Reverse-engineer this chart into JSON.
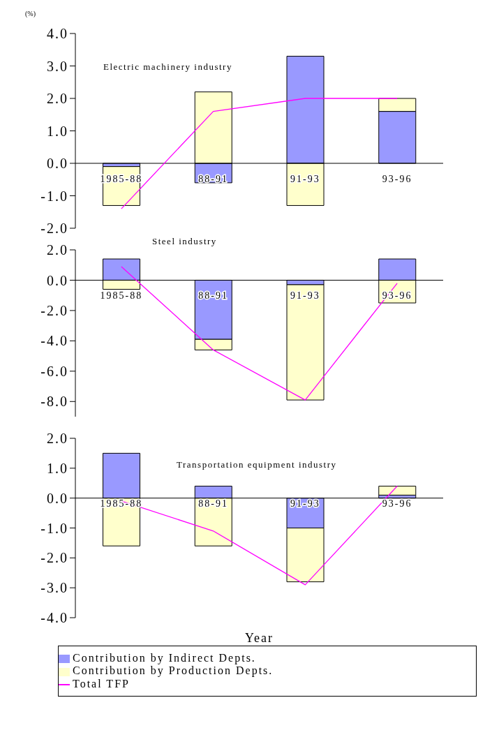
{
  "chart_data": [
    {
      "type": "bar",
      "stacked": true,
      "title": "Electric machinery industry",
      "ylabel": "(%)",
      "categories": [
        "1985-88",
        "88-91",
        "91-93",
        "93-96"
      ],
      "ylim": [
        -2,
        4
      ],
      "yticks": [
        {
          "value": -2,
          "label": "-2.0"
        },
        {
          "value": -1,
          "label": "-1.0"
        },
        {
          "value": 0,
          "label": "0.0"
        },
        {
          "value": 1,
          "label": "1.0"
        },
        {
          "value": 2,
          "label": "2.0"
        },
        {
          "value": 3,
          "label": "3.0"
        },
        {
          "value": 4,
          "label": "4.0"
        }
      ],
      "grid": false,
      "legend": false,
      "series": [
        {
          "color": "#9999ff",
          "values": [
            -0.1,
            -0.6,
            3.3,
            1.6
          ]
        },
        {
          "color": "#ffffcc",
          "values": [
            -1.2,
            2.2,
            -1.3,
            0.4
          ]
        },
        {
          "type": "line",
          "color": "#ff00ff",
          "values": [
            -1.4,
            1.6,
            2.0,
            2.0
          ]
        }
      ]
    },
    {
      "type": "bar",
      "stacked": true,
      "title": "Steel industry",
      "categories": [
        "1985-88",
        "88-91",
        "91-93",
        "93-96"
      ],
      "ylim": [
        -9,
        2
      ],
      "yticks": [
        {
          "value": -8,
          "label": "-8.0"
        },
        {
          "value": -6,
          "label": "-6.0"
        },
        {
          "value": -4,
          "label": "-4.0"
        },
        {
          "value": -2,
          "label": "-2.0"
        },
        {
          "value": 0,
          "label": "0.0"
        },
        {
          "value": 2,
          "label": "2.0"
        }
      ],
      "grid": false,
      "legend": false,
      "series": [
        {
          "color": "#9999ff",
          "values": [
            1.4,
            -3.9,
            -0.3,
            1.4
          ]
        },
        {
          "color": "#ffffcc",
          "values": [
            -0.6,
            -0.7,
            -7.6,
            -1.5
          ]
        },
        {
          "type": "line",
          "color": "#ff00ff",
          "values": [
            0.9,
            -4.6,
            -7.9,
            -0.2
          ]
        }
      ]
    },
    {
      "type": "bar",
      "stacked": true,
      "title": "Transportation equipment industry",
      "xlabel": "Year",
      "categories": [
        "1985-88",
        "88-91",
        "91-93",
        "93-96"
      ],
      "ylim": [
        -4,
        2
      ],
      "yticks": [
        {
          "value": -4,
          "label": "-4.0"
        },
        {
          "value": -3,
          "label": "-3.0"
        },
        {
          "value": -2,
          "label": "-2.0"
        },
        {
          "value": -1,
          "label": "-1.0"
        },
        {
          "value": 0,
          "label": "0.0"
        },
        {
          "value": 1,
          "label": "1.0"
        },
        {
          "value": 2,
          "label": "2.0"
        }
      ],
      "grid": false,
      "legend": "bottom",
      "series": [
        {
          "name": "Contribution by Indirect Depts.",
          "color": "#9999ff",
          "values": [
            1.5,
            0.4,
            -1.0,
            0.1
          ]
        },
        {
          "name": "Contribution by Production Depts.",
          "color": "#ffffcc",
          "values": [
            -1.6,
            -1.6,
            -1.8,
            0.3
          ]
        },
        {
          "type": "line",
          "name": "Total TFP",
          "color": "#ff00ff",
          "values": [
            -0.1,
            -1.1,
            -2.9,
            0.4
          ]
        }
      ]
    }
  ]
}
